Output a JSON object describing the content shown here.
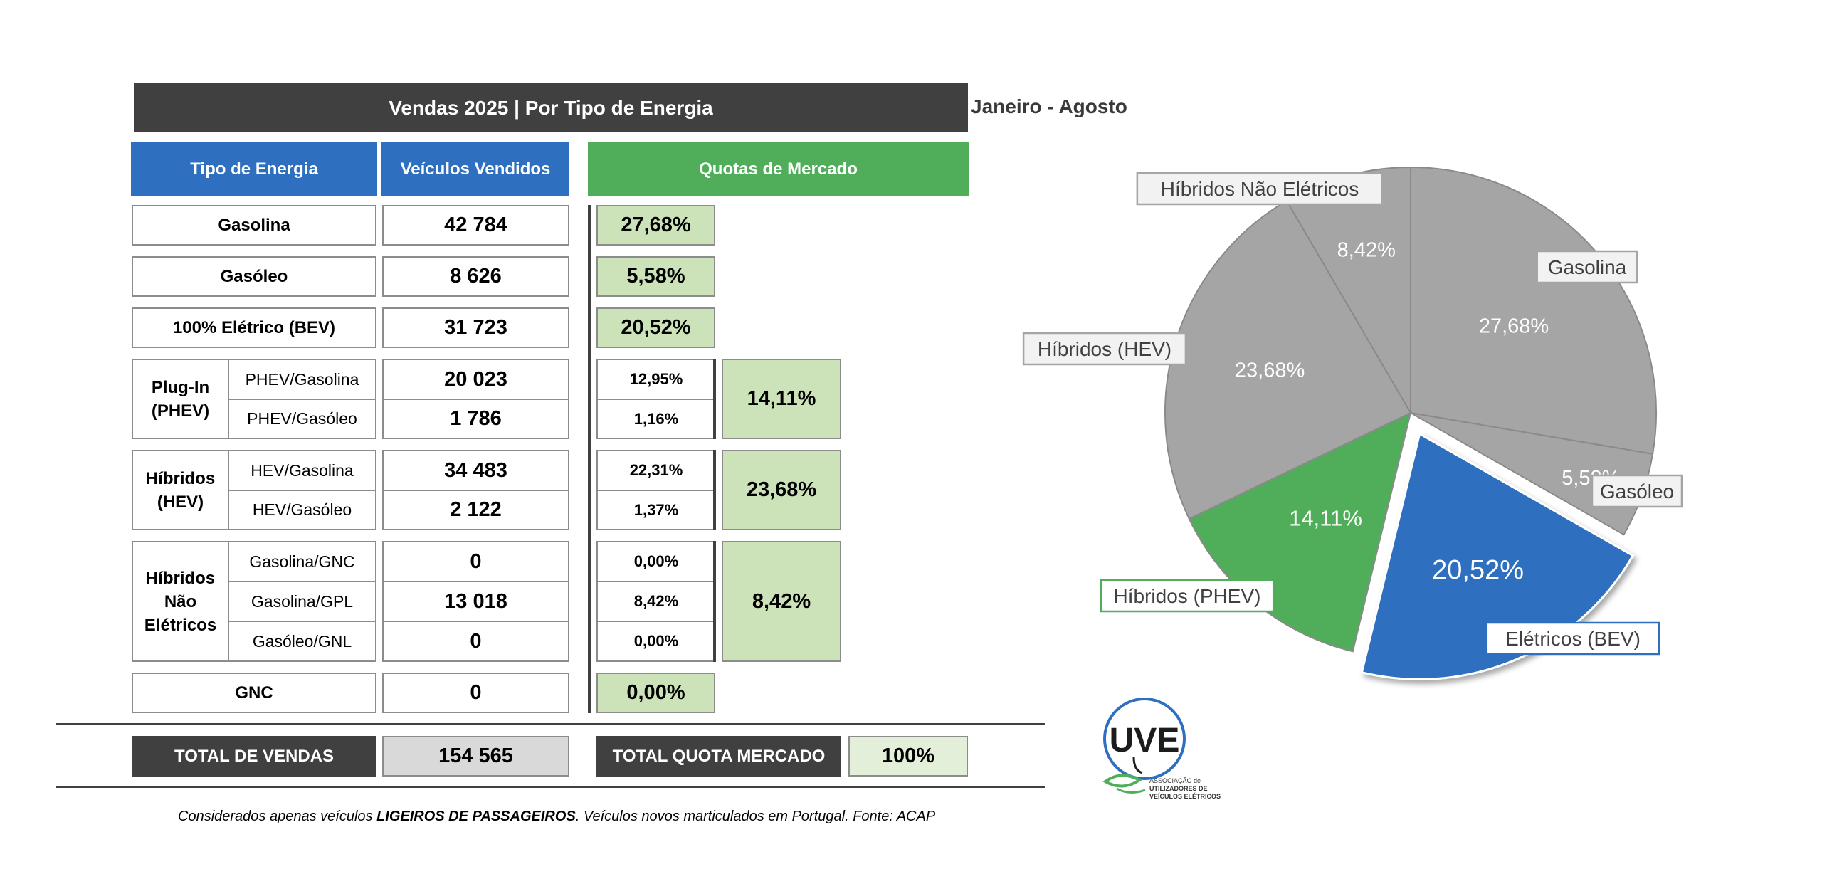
{
  "title": "Vendas 2025 | Por Tipo de Energia",
  "period": "Janeiro - Agosto",
  "headers": {
    "type": "Tipo de Energia",
    "sold": "Veículos Vendidos",
    "share": "Quotas de Mercado"
  },
  "rows": {
    "gasolina": {
      "label": "Gasolina",
      "value": "42 784",
      "share": "27,68%"
    },
    "gasoleo": {
      "label": "Gasóleo",
      "value": "8 626",
      "share": "5,58%"
    },
    "bev": {
      "label": "100% Elétrico (BEV)",
      "value": "31 723",
      "share": "20,52%"
    },
    "phev": {
      "group": "Plug-In\n(PHEV)",
      "total_share": "14,11%",
      "items": [
        {
          "label": "PHEV/Gasolina",
          "value": "20 023",
          "share": "12,95%"
        },
        {
          "label": "PHEV/Gasóleo",
          "value": "1 786",
          "share": "1,16%"
        }
      ]
    },
    "hev": {
      "group": "Híbridos\n(HEV)",
      "total_share": "23,68%",
      "items": [
        {
          "label": "HEV/Gasolina",
          "value": "34 483",
          "share": "22,31%"
        },
        {
          "label": "HEV/Gasóleo",
          "value": "2 122",
          "share": "1,37%"
        }
      ]
    },
    "nonelec": {
      "group": "Híbridos\nNão\nElétricos",
      "total_share": "8,42%",
      "items": [
        {
          "label": "Gasolina/GNC",
          "value": "0",
          "share": "0,00%"
        },
        {
          "label": "Gasolina/GPL",
          "value": "13 018",
          "share": "8,42%"
        },
        {
          "label": "Gasóleo/GNL",
          "value": "0",
          "share": "0,00%"
        }
      ]
    },
    "gnc": {
      "label": "GNC",
      "value": "0",
      "share": "0,00%"
    }
  },
  "totals": {
    "sales_label": "TOTAL DE VENDAS",
    "sales_value": "154 565",
    "share_label": "TOTAL QUOTA MERCADO",
    "share_value": "100%"
  },
  "footnote": {
    "prefix": "Considerados apenas veículos ",
    "bold": "LIGEIROS DE PASSAGEIROS",
    "suffix": ". Veículos novos marticulados em Portugal. Fonte: ACAP"
  },
  "logo": {
    "mark": "UVE",
    "text": [
      "ASSOCIAÇÃO de",
      "UTILIZADORES DE",
      "VEÍCULOS ELÉTRICOS"
    ]
  },
  "colors": {
    "dark": "#404040",
    "blue": "#2e6fbf",
    "green": "#50ae5a",
    "light_green": "#cce2b8",
    "grey": "#a6a5a6"
  },
  "chart_data": {
    "type": "pie",
    "unit": "%",
    "slices": [
      {
        "name": "Gasolina",
        "value": 27.68,
        "label": "27,68%",
        "color": "#a6a5a6",
        "exploded": false
      },
      {
        "name": "Gasóleo",
        "value": 5.58,
        "label": "5,58%",
        "color": "#a6a5a6",
        "exploded": false
      },
      {
        "name": "Elétricos (BEV)",
        "value": 20.52,
        "label": "20,52%",
        "color": "#2e6fbf",
        "exploded": true
      },
      {
        "name": "Híbridos (PHEV)",
        "value": 14.11,
        "label": "14,11%",
        "color": "#50ae5a",
        "exploded": false
      },
      {
        "name": "Híbridos (HEV)",
        "value": 23.68,
        "label": "23,68%",
        "color": "#a6a5a6",
        "exploded": false
      },
      {
        "name": "Híbridos Não Elétricos",
        "value": 8.42,
        "label": "8,42%",
        "color": "#a6a5a6",
        "exploded": false
      }
    ]
  }
}
